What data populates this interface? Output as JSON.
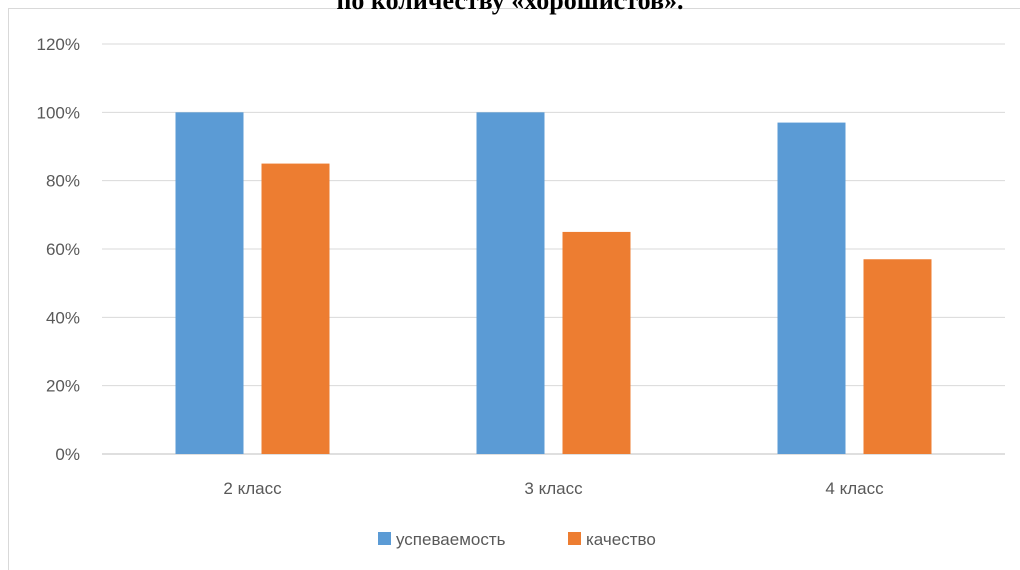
{
  "title": "по количеству «хорошистов».",
  "chart_data": {
    "type": "bar",
    "title": "по количеству «хорошистов».",
    "categories": [
      "2 класс",
      "3 класс",
      "4 класс"
    ],
    "series": [
      {
        "name": "успеваемость",
        "values": [
          100,
          100,
          97
        ],
        "color": "#5b9bd5"
      },
      {
        "name": "качество",
        "values": [
          85,
          65,
          57
        ],
        "color": "#ed7d31"
      }
    ],
    "y_ticks": [
      "0%",
      "20%",
      "40%",
      "60%",
      "80%",
      "100%",
      "120%"
    ],
    "ylim": [
      0,
      120
    ],
    "y_unit": "%",
    "grid": true,
    "legend_position": "bottom",
    "xlabel": "",
    "ylabel": ""
  }
}
